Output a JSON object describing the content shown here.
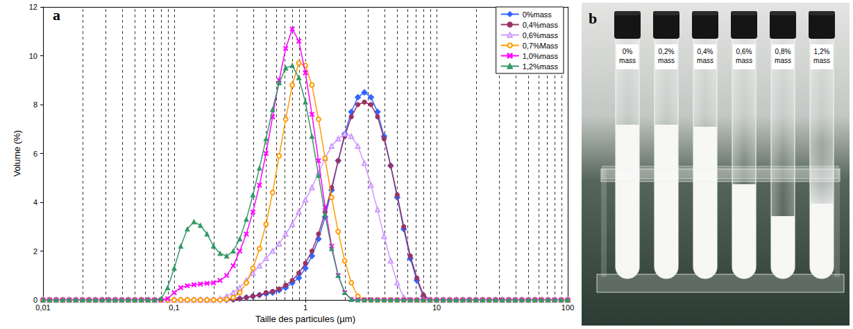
{
  "chart_data": {
    "type": "line",
    "annotations": [
      "a"
    ],
    "x_label": "Taille des particules (µm)",
    "y_label": "Volume (%)",
    "log": "x",
    "grid": true,
    "legend": "top-right",
    "xlim": [
      0.01,
      100
    ],
    "xticks": [
      {
        "value": 0.01,
        "label": "0,01"
      },
      {
        "value": 0.1,
        "label": "0,1"
      },
      1,
      10,
      100
    ],
    "ylim": [
      0,
      12
    ],
    "yticks": [
      0,
      2,
      4,
      6,
      8,
      10,
      12
    ],
    "x": [
      0.01,
      0.01122,
      0.01259,
      0.01413,
      0.01585,
      0.01778,
      0.01995,
      0.02239,
      0.02512,
      0.02818,
      0.03162,
      0.03548,
      0.03981,
      0.04467,
      0.05012,
      0.05623,
      0.0631,
      0.07079,
      0.07943,
      0.08913,
      0.1,
      0.1122,
      0.1259,
      0.1413,
      0.1585,
      0.1778,
      0.1995,
      0.2239,
      0.2512,
      0.2818,
      0.3162,
      0.3548,
      0.3981,
      0.4467,
      0.5012,
      0.5623,
      0.631,
      0.7079,
      0.7943,
      0.8913,
      1,
      1.122,
      1.259,
      1.413,
      1.585,
      1.778,
      1.995,
      2.239,
      2.512,
      2.818,
      3.162,
      3.548,
      3.981,
      4.467,
      5.012,
      5.623,
      6.31,
      7.079,
      7.943,
      8.913,
      10,
      11.22,
      12.59,
      14.13,
      15.85,
      17.78,
      19.95,
      22.39,
      25.12,
      28.18,
      31.62,
      35.48,
      39.81,
      44.67,
      50.12,
      56.23,
      63.1,
      70.79,
      79.43,
      89.13,
      100
    ],
    "series": [
      {
        "name": "0%mass",
        "color": "#3366FF",
        "marker": "diamond",
        "values": [
          0,
          0,
          0,
          0,
          0,
          0,
          0,
          0,
          0,
          0,
          0,
          0,
          0,
          0,
          0,
          0,
          0,
          0,
          0,
          0,
          0,
          0,
          0,
          0,
          0,
          0,
          0,
          0,
          0,
          0.02,
          0.05,
          0.1,
          0.15,
          0.2,
          0.25,
          0.3,
          0.4,
          0.5,
          0.7,
          0.9,
          1.3,
          1.8,
          2.5,
          3.4,
          4.5,
          5.7,
          6.8,
          7.7,
          8.3,
          8.5,
          8.3,
          7.7,
          6.7,
          5.5,
          4.2,
          2.9,
          1.7,
          0.8,
          0.15,
          0,
          0,
          0,
          0,
          0,
          0,
          0,
          0,
          0,
          0,
          0,
          0,
          0,
          0,
          0,
          0,
          0,
          0,
          0,
          0,
          0,
          0
        ]
      },
      {
        "name": "0,4%mass",
        "color": "#993366",
        "marker": "circle",
        "values": [
          0,
          0,
          0,
          0,
          0,
          0,
          0,
          0,
          0,
          0,
          0,
          0,
          0,
          0,
          0,
          0,
          0,
          0,
          0,
          0,
          0,
          0,
          0,
          0,
          0,
          0,
          0,
          0,
          0,
          0.02,
          0.05,
          0.1,
          0.15,
          0.2,
          0.3,
          0.35,
          0.45,
          0.6,
          0.8,
          1.1,
          1.5,
          2.0,
          2.7,
          3.6,
          4.6,
          5.7,
          6.7,
          7.5,
          8.0,
          8.1,
          8.0,
          7.5,
          6.6,
          5.5,
          4.3,
          3.0,
          1.8,
          0.9,
          0.2,
          0,
          0,
          0,
          0,
          0,
          0,
          0,
          0,
          0,
          0,
          0,
          0,
          0,
          0,
          0,
          0,
          0,
          0,
          0,
          0,
          0,
          0
        ]
      },
      {
        "name": "0,6%mass",
        "color": "#CC99FF",
        "marker": "triangle-open",
        "values": [
          0,
          0,
          0,
          0,
          0,
          0,
          0,
          0,
          0,
          0,
          0,
          0,
          0,
          0,
          0,
          0,
          0,
          0,
          0,
          0,
          0,
          0,
          0,
          0,
          0,
          0,
          0,
          0.05,
          0.15,
          0.3,
          0.5,
          0.8,
          1.1,
          1.4,
          1.7,
          2.0,
          2.3,
          2.7,
          3.1,
          3.6,
          4.1,
          4.6,
          5.2,
          5.8,
          6.3,
          6.6,
          6.8,
          6.7,
          6.3,
          5.6,
          4.7,
          3.7,
          2.6,
          1.6,
          0.7,
          0.1,
          0,
          0,
          0,
          0,
          0,
          0,
          0,
          0,
          0,
          0,
          0,
          0,
          0,
          0,
          0,
          0,
          0,
          0,
          0,
          0,
          0,
          0,
          0,
          0,
          0
        ]
      },
      {
        "name": "0,7%Mass",
        "color": "#FF9900",
        "marker": "circle-open",
        "values": [
          0,
          0,
          0,
          0,
          0,
          0,
          0,
          0,
          0,
          0,
          0,
          0,
          0,
          0,
          0,
          0,
          0,
          0,
          0,
          0,
          0,
          0,
          0,
          0,
          0,
          0,
          0,
          0,
          0.02,
          0.1,
          0.3,
          0.7,
          1.3,
          2.1,
          3.1,
          4.4,
          5.9,
          7.4,
          8.8,
          9.7,
          9.6,
          8.8,
          7.4,
          5.8,
          4.2,
          2.8,
          1.6,
          0.7,
          0.15,
          0,
          0,
          0,
          0,
          0,
          0,
          0,
          0,
          0,
          0,
          0,
          0,
          0,
          0,
          0,
          0,
          0,
          0,
          0,
          0,
          0,
          0,
          0,
          0,
          0,
          0,
          0,
          0,
          0,
          0,
          0,
          0
        ]
      },
      {
        "name": "1,0%mass",
        "color": "#FF00FF",
        "marker": "x",
        "values": [
          0,
          0,
          0,
          0,
          0,
          0,
          0,
          0,
          0,
          0,
          0,
          0,
          0,
          0,
          0,
          0,
          0,
          0,
          0,
          0.05,
          0.3,
          0.5,
          0.58,
          0.62,
          0.65,
          0.68,
          0.7,
          0.8,
          1.0,
          1.4,
          2.0,
          2.7,
          3.6,
          4.7,
          6.0,
          7.5,
          9.0,
          10.3,
          11.1,
          10.6,
          9.3,
          7.6,
          5.7,
          3.8,
          2.2,
          1.0,
          0.3,
          0.02,
          0,
          0,
          0,
          0,
          0,
          0,
          0,
          0,
          0,
          0,
          0,
          0,
          0,
          0,
          0,
          0,
          0,
          0,
          0,
          0,
          0,
          0,
          0,
          0,
          0,
          0,
          0,
          0,
          0,
          0,
          0,
          0,
          0
        ]
      },
      {
        "name": "1,2%mass",
        "color": "#339966",
        "marker": "triangle",
        "values": [
          0,
          0,
          0,
          0,
          0,
          0,
          0,
          0,
          0,
          0,
          0,
          0,
          0,
          0,
          0,
          0,
          0,
          0,
          0.05,
          0.5,
          1.3,
          2.2,
          2.9,
          3.2,
          3.05,
          2.7,
          2.2,
          1.9,
          1.8,
          2.0,
          2.5,
          3.3,
          4.3,
          5.4,
          6.6,
          7.8,
          8.9,
          9.5,
          9.6,
          9.1,
          8.1,
          6.7,
          5.1,
          3.5,
          2.1,
          1.0,
          0.3,
          0.02,
          0,
          0,
          0,
          0,
          0,
          0,
          0,
          0,
          0,
          0,
          0,
          0,
          0,
          0,
          0,
          0,
          0,
          0,
          0,
          0,
          0,
          0,
          0,
          0,
          0,
          0,
          0,
          0,
          0,
          0,
          0,
          0,
          0
        ]
      }
    ]
  },
  "photo": {
    "label": "b",
    "tubes": [
      "0% mass",
      "0,2% mass",
      "0,4% mass",
      "0,6% mass",
      "0,8% mass",
      "1,2% mass"
    ]
  }
}
